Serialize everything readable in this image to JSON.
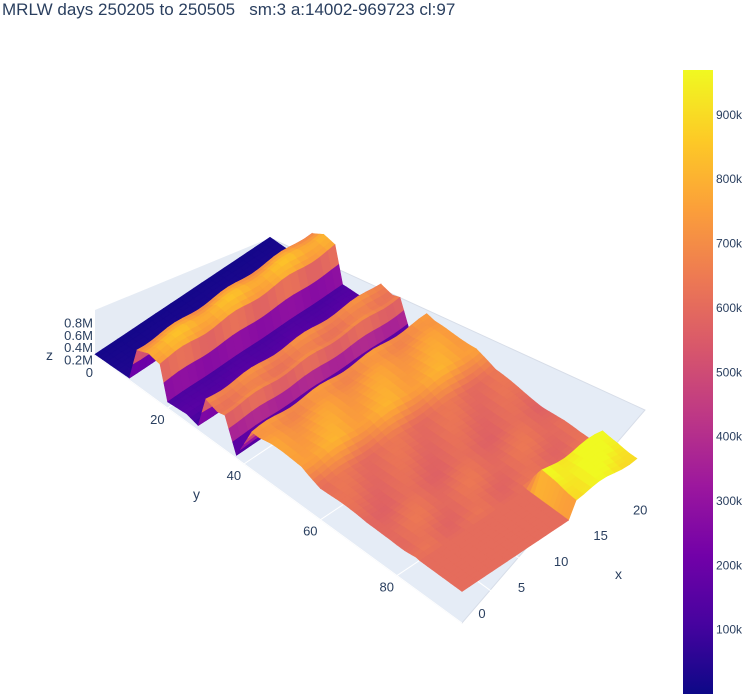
{
  "title": "MRLW days 250205 to 250505   sm:3 a:14002-969723 cl:97",
  "chart_data": {
    "type": "surface",
    "xlabel": "x",
    "ylabel": "y",
    "zlabel": "z",
    "xlim": [
      0,
      23
    ],
    "ylim": [
      1,
      97
    ],
    "zlim": [
      0,
      969723
    ],
    "x_ticks": [
      "0",
      "5",
      "10",
      "15",
      "20"
    ],
    "x_tick_values": [
      0,
      5,
      10,
      15,
      20
    ],
    "y_ticks": [
      "20",
      "40",
      "60",
      "80"
    ],
    "y_tick_values": [
      20,
      40,
      60,
      80
    ],
    "z_ticks": [
      "0",
      "0.2M",
      "0.4M",
      "0.6M",
      "0.8M"
    ],
    "z_tick_values": [
      0,
      200000,
      400000,
      600000,
      800000
    ],
    "colorbar_ticks": [
      "100k",
      "200k",
      "300k",
      "400k",
      "500k",
      "600k",
      "700k",
      "800k",
      "900k"
    ],
    "colorbar_tick_values": [
      100000,
      200000,
      300000,
      400000,
      500000,
      600000,
      700000,
      800000,
      900000
    ],
    "colorscale": [
      "#0d0887",
      "#46039f",
      "#7201a8",
      "#9c179e",
      "#bd3786",
      "#d8576b",
      "#ed7953",
      "#fb9f3a",
      "#fdca26",
      "#f0f921"
    ],
    "profile_y": [
      1,
      7,
      10,
      12,
      15,
      18,
      20,
      25,
      28,
      30,
      33,
      35,
      38,
      42,
      44,
      47,
      50,
      55,
      60,
      65,
      68,
      72,
      75,
      78,
      82,
      85,
      88,
      92,
      95,
      97
    ],
    "profile_z": [
      14002,
      30000,
      40000,
      700000,
      820000,
      760000,
      120000,
      150000,
      90000,
      700000,
      640000,
      690000,
      60000,
      720000,
      700000,
      740000,
      760000,
      780000,
      620000,
      610000,
      600000,
      590000,
      610000,
      620000,
      600000,
      610000,
      960000,
      969723,
      940000,
      930000
    ]
  }
}
